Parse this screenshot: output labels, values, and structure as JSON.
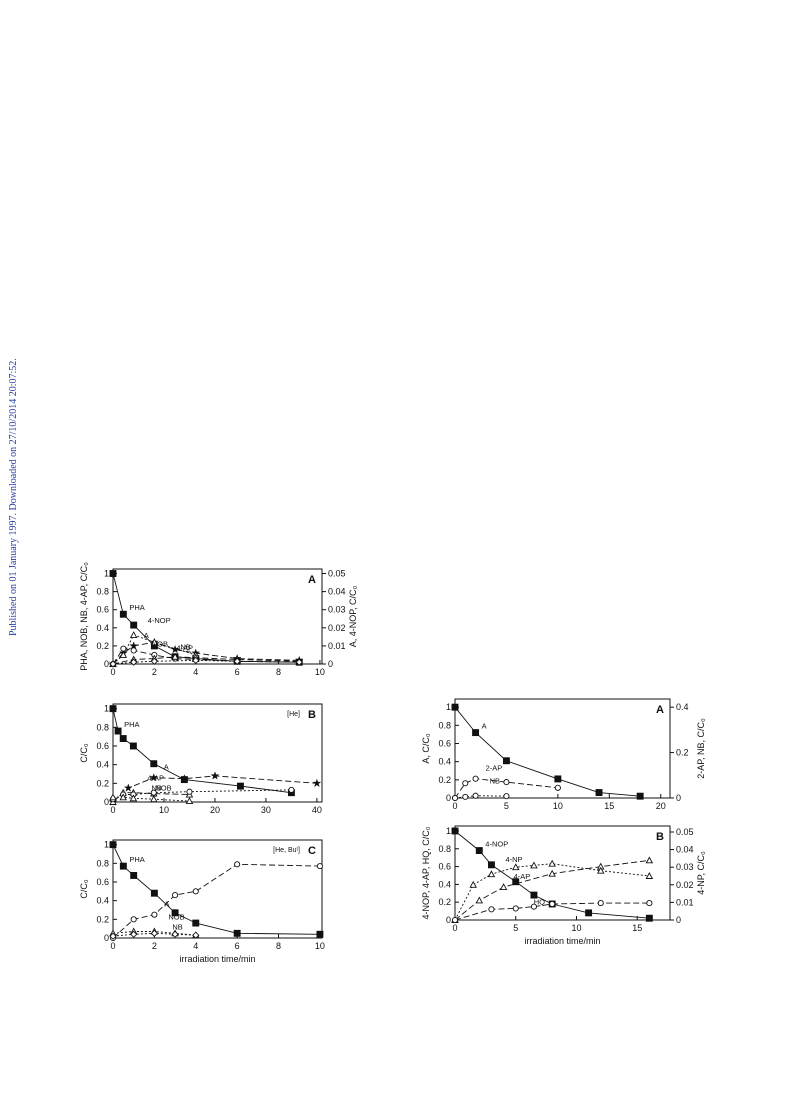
{
  "sidebar": "Published on 01 January 1997. Downloaded on 27/10/2014 20:07:52.",
  "chart_data": [
    {
      "type": "line",
      "panel": "A",
      "ylabel": "PHA, NOB, NB, 4-AP, C/C₀",
      "y2label": "A, 4-NOP, C/C₀",
      "xlim": [
        0,
        10.1
      ],
      "xticks": [
        0,
        2,
        4,
        6,
        8,
        10
      ],
      "ylim": [
        0,
        1.05
      ],
      "yticks": [
        0,
        0.2,
        0.4,
        0.6,
        0.8,
        1
      ],
      "y2lim": [
        0,
        0.0525
      ],
      "y2ticks": [
        0,
        0.01,
        0.02,
        0.03,
        0.04,
        0.05
      ],
      "series": [
        {
          "name": "PHA",
          "marker": "square",
          "dash": "solid",
          "x": [
            0,
            0.5,
            1,
            2,
            3,
            4,
            6,
            9
          ],
          "values": [
            1,
            0.55,
            0.43,
            0.2,
            0.08,
            0.06,
            0.03,
            0.02
          ]
        },
        {
          "name": "A",
          "axis": "y2",
          "marker": "star",
          "dash": "dashed",
          "x": [
            0,
            0.5,
            1,
            2,
            3,
            4,
            6,
            9
          ],
          "values": [
            0,
            0.006,
            0.01,
            0.012,
            0.008,
            0.006,
            0.003,
            0.002
          ]
        },
        {
          "name": "4-NOP",
          "axis": "y2",
          "marker": "triangle",
          "dash": "dotted",
          "x": [
            0,
            0.5,
            1,
            2,
            4
          ],
          "values": [
            0,
            0.005,
            0.016,
            0.012,
            0.005
          ]
        },
        {
          "name": "NOB",
          "marker": "circle",
          "dash": "dashed",
          "x": [
            0,
            0.5,
            1,
            2,
            3,
            4,
            6,
            9
          ],
          "values": [
            0,
            0.17,
            0.15,
            0.1,
            0.06,
            0.05,
            0.03,
            0.02
          ]
        },
        {
          "name": "4-AP",
          "marker": "triangle",
          "dash": "dashed",
          "x": [
            0,
            1,
            2,
            3,
            4,
            6,
            9
          ],
          "values": [
            0,
            0.05,
            0.06,
            0.08,
            0.07,
            0.05,
            0.03
          ]
        },
        {
          "name": "NB",
          "marker": "diamond",
          "dash": "dotted",
          "x": [
            0,
            1,
            2,
            4,
            6,
            9
          ],
          "values": [
            0,
            0.02,
            0.03,
            0.04,
            0.03,
            0.02
          ]
        }
      ]
    },
    {
      "type": "line",
      "panel": "B",
      "note": "[He]",
      "ylabel": "C/C₀",
      "xlim": [
        0,
        41
      ],
      "xticks": [
        0,
        10,
        20,
        30,
        40
      ],
      "ylim": [
        0,
        1.05
      ],
      "yticks": [
        0,
        0.2,
        0.4,
        0.6,
        0.8,
        1
      ],
      "series": [
        {
          "name": "PHA",
          "marker": "square",
          "dash": "solid",
          "x": [
            0,
            1,
            2,
            4,
            8,
            14,
            25,
            35
          ],
          "values": [
            1,
            0.76,
            0.68,
            0.6,
            0.41,
            0.24,
            0.17,
            0.1
          ]
        },
        {
          "name": "A",
          "marker": "star",
          "dash": "dashed",
          "x": [
            0,
            3,
            8,
            14,
            20,
            40
          ],
          "values": [
            0,
            0.15,
            0.26,
            0.25,
            0.28,
            0.2
          ]
        },
        {
          "name": "4-AP",
          "marker": "triangle",
          "dash": "dashed",
          "x": [
            0,
            2,
            4,
            8,
            15
          ],
          "values": [
            0,
            0.1,
            0.1,
            0.09,
            0.08
          ]
        },
        {
          "name": "NB",
          "marker": "circle",
          "dash": "dotted",
          "x": [
            0,
            2,
            4,
            8,
            15,
            35
          ],
          "values": [
            0.03,
            0.08,
            0.08,
            0.1,
            0.11,
            0.13
          ]
        },
        {
          "name": "NOB",
          "marker": "triangle",
          "dash": "dotted",
          "x": [
            0,
            2,
            4,
            8,
            15
          ],
          "values": [
            0.05,
            0.05,
            0.04,
            0.03,
            0.01
          ]
        }
      ]
    },
    {
      "type": "line",
      "panel": "C",
      "note": "[He, Buᵗ]",
      "ylabel": "C/C₀",
      "xlabel": "irradiation time/min",
      "xlim": [
        0,
        10.1
      ],
      "xticks": [
        0,
        2,
        4,
        6,
        8,
        10
      ],
      "ylim": [
        0,
        1.05
      ],
      "yticks": [
        0,
        0.2,
        0.4,
        0.6,
        0.8,
        1
      ],
      "series": [
        {
          "name": "PHA",
          "marker": "square",
          "dash": "solid",
          "x": [
            0,
            0.5,
            1,
            2,
            3,
            4,
            6,
            10
          ],
          "values": [
            1,
            0.77,
            0.67,
            0.48,
            0.27,
            0.16,
            0.05,
            0.04
          ]
        },
        {
          "name": "A",
          "marker": "circle",
          "dash": "dashed",
          "x": [
            0,
            1,
            2,
            3,
            4,
            6,
            10
          ],
          "values": [
            0,
            0.2,
            0.25,
            0.46,
            0.5,
            0.79,
            0.77
          ]
        },
        {
          "name": "NOB",
          "marker": "triangle",
          "dash": "dotted",
          "x": [
            0,
            1,
            2,
            3,
            4
          ],
          "values": [
            0.05,
            0.07,
            0.07,
            0.05,
            0.03
          ]
        },
        {
          "name": "NB",
          "marker": "diamond",
          "dash": "dotted",
          "x": [
            0,
            1,
            2,
            3,
            4
          ],
          "values": [
            0.02,
            0.04,
            0.05,
            0.04,
            0.03
          ]
        }
      ]
    },
    {
      "type": "line",
      "panel": "A",
      "ylabel": "A, C/C₀",
      "y2label": "2-AP, NB, C/C₀",
      "xlim": [
        0,
        20.9
      ],
      "xticks": [
        0,
        5,
        10,
        15,
        20
      ],
      "ylim": [
        0,
        1.09
      ],
      "yticks": [
        0,
        0.2,
        0.4,
        0.6,
        0.8,
        1
      ],
      "y2lim": [
        0,
        0.436
      ],
      "y2ticks": [
        0,
        0.2,
        0.4
      ],
      "series": [
        {
          "name": "A",
          "marker": "square",
          "dash": "solid",
          "x": [
            0,
            2,
            5,
            10,
            14,
            18
          ],
          "values": [
            1,
            0.72,
            0.41,
            0.21,
            0.06,
            0.02
          ]
        },
        {
          "name": "2-AP",
          "axis": "y2",
          "marker": "circle",
          "dash": "dashed",
          "x": [
            0,
            1,
            2,
            5,
            10
          ],
          "values": [
            0,
            0.065,
            0.085,
            0.07,
            0.045
          ]
        },
        {
          "name": "NB",
          "axis": "y2",
          "marker": "circle",
          "dash": "dotted",
          "x": [
            0,
            1,
            2,
            5
          ],
          "values": [
            0,
            0.005,
            0.01,
            0.008
          ]
        }
      ]
    },
    {
      "type": "line",
      "panel": "B",
      "ylabel": "4-NOP, 4-AP, HQ, C/C₀",
      "y2label": "4-NP, C/C₀",
      "xlabel": "irradiation time/min",
      "xlim": [
        0,
        17.7
      ],
      "xticks": [
        0,
        5,
        10,
        15
      ],
      "ylim": [
        0,
        1.056
      ],
      "yticks": [
        0,
        0.2,
        0.4,
        0.6,
        0.8,
        1
      ],
      "y2lim": [
        0,
        0.0534
      ],
      "y2ticks": [
        0,
        0.01,
        0.02,
        0.03,
        0.04,
        0.05
      ],
      "series": [
        {
          "name": "4-NOP",
          "marker": "square",
          "dash": "solid",
          "x": [
            0,
            2,
            3,
            5,
            6.5,
            8,
            11,
            16
          ],
          "values": [
            1,
            0.78,
            0.62,
            0.43,
            0.28,
            0.18,
            0.08,
            0.02
          ]
        },
        {
          "name": "4-AP",
          "marker": "triangle",
          "dash": "dashed",
          "x": [
            0,
            2,
            4,
            8,
            12,
            16
          ],
          "values": [
            0,
            0.22,
            0.37,
            0.52,
            0.6,
            0.67
          ]
        },
        {
          "name": "4-NP",
          "axis": "y2",
          "marker": "triangle",
          "dash": "dotted",
          "x": [
            0,
            1.5,
            3,
            5,
            6.5,
            8,
            12,
            16
          ],
          "values": [
            0,
            0.02,
            0.026,
            0.03,
            0.031,
            0.032,
            0.028,
            0.025
          ]
        },
        {
          "name": "HQ",
          "marker": "circle",
          "dash": "dashed",
          "x": [
            0,
            3,
            5,
            6.5,
            8,
            12,
            16
          ],
          "values": [
            0,
            0.12,
            0.13,
            0.15,
            0.18,
            0.19,
            0.19
          ]
        }
      ]
    }
  ]
}
